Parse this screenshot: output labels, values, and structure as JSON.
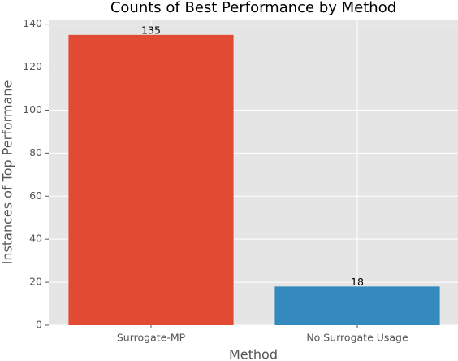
{
  "chart_data": {
    "type": "bar",
    "title": "Counts of Best Performance by Method",
    "x_label": "Method",
    "y_label": "Instances of Top Performane",
    "categories": [
      "Surrogate-MP",
      "No Surrogate Usage"
    ],
    "values": [
      135,
      18
    ],
    "colors": [
      "#E24A33",
      "#348ABD"
    ],
    "ylim": [
      0,
      141.75
    ],
    "yticks": [
      0,
      20,
      40,
      60,
      80,
      100,
      120,
      140
    ],
    "grid": true
  }
}
